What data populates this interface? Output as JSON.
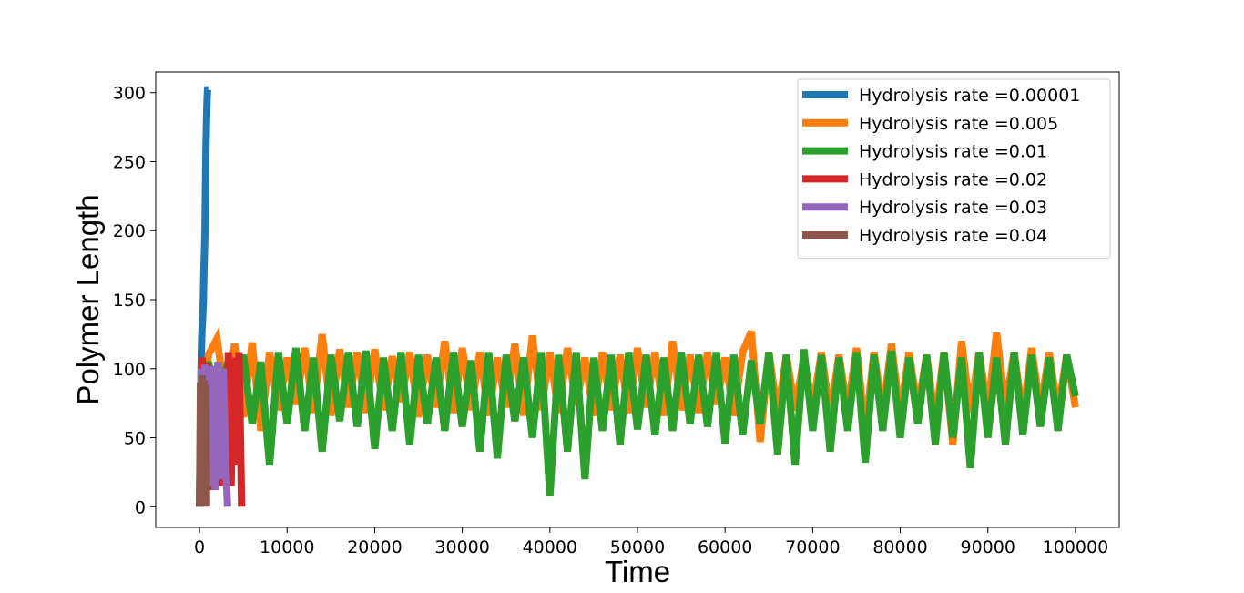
{
  "chart_data": {
    "type": "line",
    "title": "",
    "xlabel": "Time",
    "ylabel": "Polymer Length",
    "xlim": [
      -5000,
      105000
    ],
    "ylim": [
      -15,
      315
    ],
    "xticks": [
      0,
      10000,
      20000,
      30000,
      40000,
      50000,
      60000,
      70000,
      80000,
      90000,
      100000
    ],
    "xtick_labels": [
      "0",
      "10000",
      "20000",
      "30000",
      "40000",
      "50000",
      "60000",
      "70000",
      "80000",
      "90000",
      "100000"
    ],
    "yticks": [
      0,
      50,
      100,
      150,
      200,
      250,
      300
    ],
    "ytick_labels": [
      "0",
      "50",
      "100",
      "150",
      "200",
      "250",
      "300"
    ],
    "legend_position": "top-right",
    "series": [
      {
        "name": "Hydrolysis rate =0.00001",
        "color": "#1f77b4",
        "x": [
          0,
          50,
          100,
          150,
          200,
          260,
          320,
          380,
          440,
          500,
          560,
          620,
          680,
          740,
          800,
          860,
          920,
          1000
        ],
        "y": [
          0,
          30,
          60,
          90,
          110,
          125,
          133,
          140,
          150,
          170,
          185,
          200,
          230,
          260,
          280,
          295,
          302,
          302
        ]
      },
      {
        "name": "Hydrolysis rate =0.005",
        "color": "#ff7f0e",
        "x": [
          0,
          1000,
          2000,
          3000,
          4000,
          5000,
          6000,
          7000,
          8000,
          9000,
          10000,
          11000,
          12000,
          13000,
          14000,
          15000,
          16000,
          17000,
          18000,
          19000,
          20000,
          21000,
          22000,
          23000,
          24000,
          25000,
          26000,
          27000,
          28000,
          29000,
          30000,
          31000,
          32000,
          33000,
          34000,
          35000,
          36000,
          37000,
          38000,
          39000,
          40000,
          41000,
          42000,
          43000,
          44000,
          45000,
          46000,
          47000,
          48000,
          49000,
          50000,
          51000,
          52000,
          53000,
          54000,
          55000,
          56000,
          57000,
          58000,
          59000,
          60000,
          61000,
          62000,
          63000,
          64000,
          65000,
          66000,
          67000,
          68000,
          69000,
          70000,
          71000,
          72000,
          73000,
          74000,
          75000,
          76000,
          77000,
          78000,
          79000,
          80000,
          81000,
          82000,
          83000,
          84000,
          85000,
          86000,
          87000,
          88000,
          89000,
          90000,
          91000,
          92000,
          93000,
          94000,
          95000,
          96000,
          97000,
          98000,
          99000,
          100000
        ],
        "y": [
          0,
          110,
          122,
          75,
          118,
          65,
          119,
          55,
          112,
          70,
          108,
          74,
          115,
          68,
          125,
          66,
          114,
          72,
          112,
          68,
          114,
          70,
          109,
          76,
          112,
          65,
          110,
          72,
          120,
          68,
          115,
          70,
          112,
          66,
          108,
          72,
          118,
          66,
          124,
          70,
          112,
          68,
          115,
          74,
          108,
          66,
          112,
          70,
          110,
          68,
          115,
          72,
          112,
          66,
          120,
          70,
          110,
          68,
          112,
          74,
          108,
          66,
          112,
          127,
          47,
          112,
          66,
          110,
          70,
          108,
          72,
          112,
          66,
          110,
          70,
          115,
          55,
          112,
          68,
          118,
          66,
          112,
          70,
          110,
          62,
          112,
          45,
          120,
          68,
          112,
          70,
          126,
          72,
          112,
          66,
          115,
          70,
          112,
          68,
          110,
          72
        ]
      },
      {
        "name": "Hydrolysis rate =0.01",
        "color": "#2ca02c",
        "x": [
          0,
          1000,
          2000,
          3000,
          4000,
          5000,
          6000,
          7000,
          8000,
          9000,
          10000,
          11000,
          12000,
          13000,
          14000,
          15000,
          16000,
          17000,
          18000,
          19000,
          20000,
          21000,
          22000,
          23000,
          24000,
          25000,
          26000,
          27000,
          28000,
          29000,
          30000,
          31000,
          32000,
          33000,
          34000,
          35000,
          36000,
          37000,
          38000,
          39000,
          40000,
          41000,
          42000,
          43000,
          44000,
          45000,
          46000,
          47000,
          48000,
          49000,
          50000,
          51000,
          52000,
          53000,
          54000,
          55000,
          56000,
          57000,
          58000,
          59000,
          60000,
          61000,
          62000,
          63000,
          64000,
          65000,
          66000,
          67000,
          68000,
          69000,
          70000,
          71000,
          72000,
          73000,
          74000,
          75000,
          76000,
          77000,
          78000,
          79000,
          80000,
          81000,
          82000,
          83000,
          84000,
          85000,
          86000,
          87000,
          88000,
          89000,
          90000,
          91000,
          92000,
          93000,
          94000,
          95000,
          96000,
          97000,
          98000,
          99000,
          100000
        ],
        "y": [
          0,
          105,
          80,
          100,
          70,
          110,
          60,
          105,
          30,
          112,
          60,
          115,
          55,
          108,
          40,
          110,
          62,
          112,
          58,
          113,
          42,
          108,
          55,
          112,
          45,
          110,
          60,
          108,
          55,
          112,
          58,
          106,
          40,
          112,
          35,
          110,
          62,
          108,
          50,
          112,
          8,
          110,
          40,
          112,
          20,
          108,
          55,
          110,
          45,
          112,
          56,
          110,
          52,
          108,
          55,
          112,
          60,
          110,
          58,
          112,
          46,
          110,
          52,
          106,
          60,
          112,
          38,
          110,
          30,
          114,
          55,
          110,
          40,
          108,
          55,
          112,
          32,
          110,
          55,
          113,
          50,
          108,
          60,
          110,
          45,
          112,
          50,
          108,
          28,
          112,
          50,
          108,
          45,
          112,
          52,
          110,
          58,
          108,
          55,
          110,
          80
        ]
      },
      {
        "name": "Hydrolysis rate =0.02",
        "color": "#d62728",
        "x": [
          0,
          300,
          600,
          900,
          1200,
          1500,
          1800,
          2100,
          2400,
          2700,
          3000,
          3300,
          3600,
          3900,
          4200,
          4500,
          4800
        ],
        "y": [
          0,
          108,
          50,
          104,
          12,
          102,
          18,
          105,
          15,
          100,
          30,
          112,
          15,
          108,
          30,
          112,
          0
        ]
      },
      {
        "name": "Hydrolysis rate =0.03",
        "color": "#9467bd",
        "x": [
          0,
          200,
          400,
          600,
          800,
          1000,
          1200,
          1500,
          1800,
          2100,
          2400,
          2700,
          3000,
          3200
        ],
        "y": [
          0,
          100,
          20,
          103,
          30,
          100,
          15,
          102,
          12,
          105,
          20,
          100,
          30,
          0
        ]
      },
      {
        "name": "Hydrolysis rate =0.04",
        "color": "#8c564b",
        "x": [
          0,
          100,
          200,
          300,
          400,
          500,
          600,
          700,
          800
        ],
        "y": [
          0,
          90,
          10,
          95,
          15,
          92,
          5,
          88,
          0
        ]
      }
    ]
  }
}
